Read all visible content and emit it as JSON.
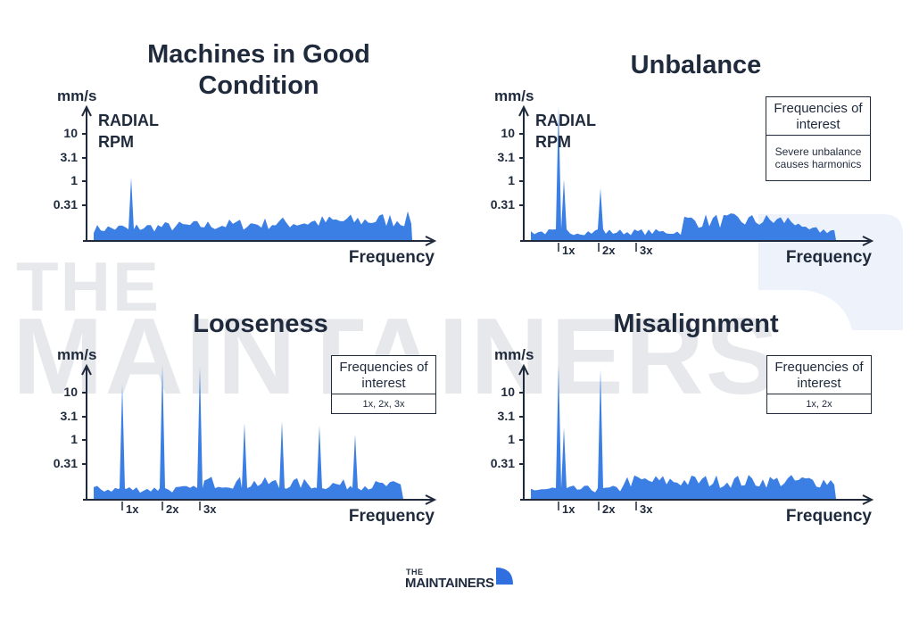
{
  "watermark": {
    "line1": "THE",
    "line2": "MAINTAINERS"
  },
  "panels": [
    {
      "title": "Machines in Good Condition",
      "y_unit": "mm/s",
      "y_ticks": [
        "10",
        "3.1",
        "1",
        "0.31"
      ],
      "x_label": "Frequency",
      "annotation": [
        "RADIAL",
        "RPM"
      ]
    },
    {
      "title": "Unbalance",
      "y_unit": "mm/s",
      "y_ticks": [
        "10",
        "3.1",
        "1",
        "0.31"
      ],
      "x_label": "Frequency",
      "annotation": [
        "RADIAL",
        "RPM"
      ],
      "harmonics": [
        "1x",
        "2x",
        "3x"
      ],
      "legend": {
        "header": "Frequencies of interest",
        "body": "Severe unbalance causes harmonics"
      }
    },
    {
      "title": "Looseness",
      "y_unit": "mm/s",
      "y_ticks": [
        "10",
        "3.1",
        "1",
        "0.31"
      ],
      "x_label": "Frequency",
      "harmonics": [
        "1x",
        "2x",
        "3x"
      ],
      "legend": {
        "header": "Frequencies of interest",
        "body": "1x, 2x, 3x"
      }
    },
    {
      "title": "Misalignment",
      "y_unit": "mm/s",
      "y_ticks": [
        "10",
        "3.1",
        "1",
        "0.31"
      ],
      "x_label": "Frequency",
      "harmonics": [
        "1x",
        "2x",
        "3x"
      ],
      "legend": {
        "header": "Frequencies of interest",
        "body": "1x, 2x"
      }
    }
  ],
  "footer": {
    "line1": "THE",
    "line2": "MAINTAINERS"
  }
}
